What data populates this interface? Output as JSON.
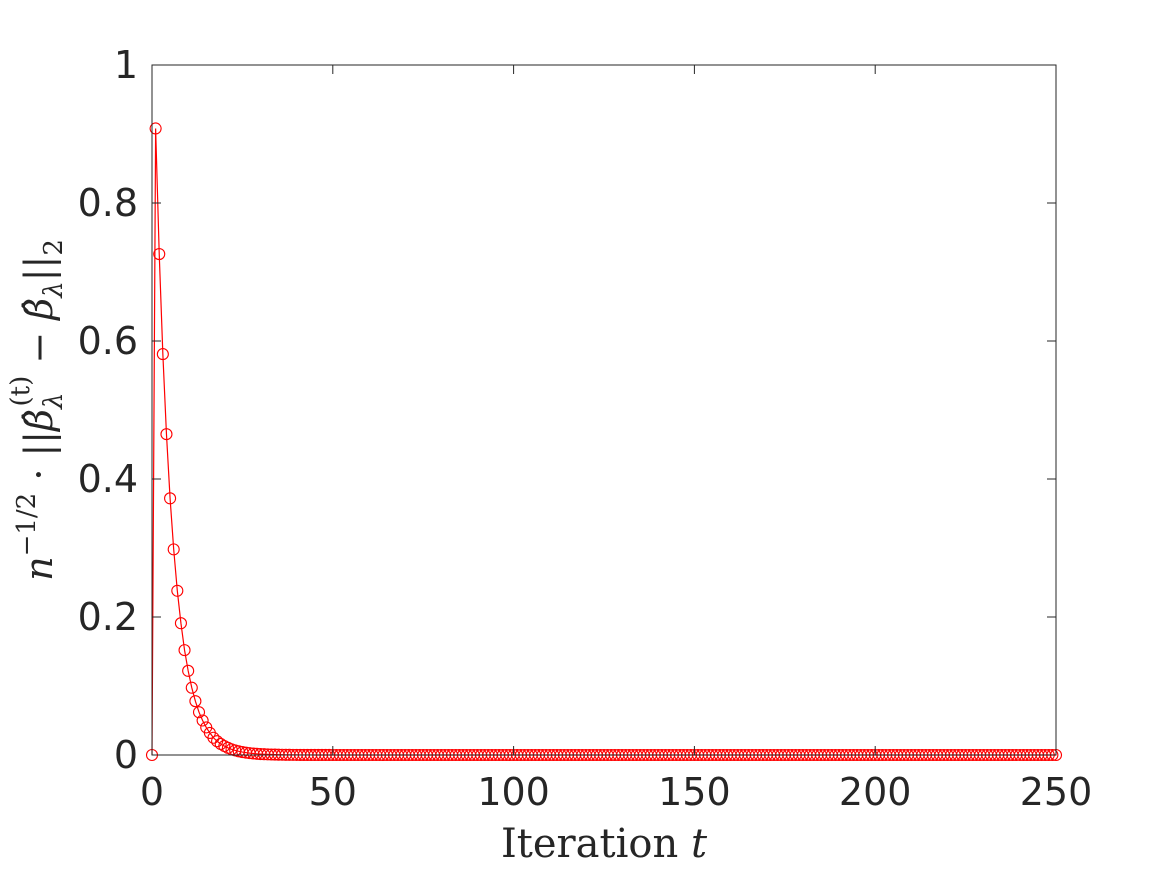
{
  "chart_data": {
    "type": "line",
    "xlabel": "Iteration t",
    "xlabel_parts": {
      "text": "Iteration ",
      "var": "t"
    },
    "ylabel": "n^{-1/2} · ||β̂_λ^{(t)} − β̂_λ||_2",
    "ylabel_parts": {
      "n": "n",
      "exp": "−1/2",
      "dot": " · ",
      "bars_open": "||",
      "beta": "β̂",
      "sub": "λ",
      "sup": "(t)",
      "minus": " − ",
      "beta2": "β̂",
      "sub2": "λ",
      "bars_close": "||",
      "norm_sub": "2"
    },
    "xlim": [
      0,
      250
    ],
    "ylim": [
      0,
      1
    ],
    "xticks": [
      0,
      50,
      100,
      150,
      200,
      250
    ],
    "yticks": [
      0,
      0.2,
      0.4,
      0.6,
      0.8,
      1
    ],
    "xtick_labels": [
      "0",
      "50",
      "100",
      "150",
      "200",
      "250"
    ],
    "ytick_labels": [
      "0",
      "0.2",
      "0.4",
      "0.6",
      "0.8",
      "1"
    ],
    "grid": false,
    "series": [
      {
        "color": "#ff0000",
        "marker": "circle-open",
        "x": [
          0,
          1,
          2,
          3,
          4,
          5,
          6,
          7,
          8,
          9,
          10,
          11,
          12,
          13,
          14,
          15,
          16,
          17,
          18,
          19,
          20
        ],
        "values": [
          0,
          0.908,
          0.726,
          0.581,
          0.465,
          0.372,
          0.298,
          0.238,
          0.191,
          0.152,
          0.122,
          0.0975,
          0.078,
          0.062,
          0.05,
          0.04,
          0.032,
          0.025,
          0.02,
          0.016,
          0.013
        ],
        "tail": {
          "ratio": 0.8,
          "through_x": 250
        }
      }
    ]
  }
}
